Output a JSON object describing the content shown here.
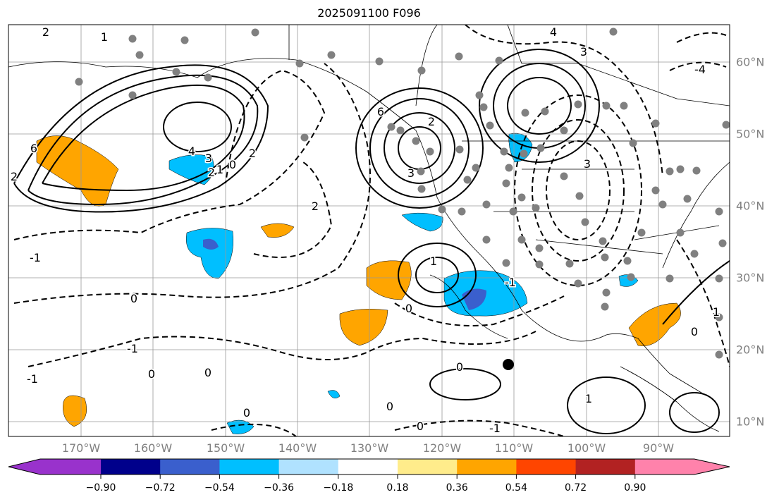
{
  "title": "2025091100 F096",
  "lon_labels": [
    "170°W",
    "160°W",
    "150°W",
    "140°W",
    "130°W",
    "120°W",
    "110°W",
    "100°W",
    "90°W"
  ],
  "lat_labels": [
    "60°N",
    "50°N",
    "40°N",
    "30°N",
    "20°N",
    "10°N"
  ],
  "colorbar": {
    "ticks": [
      "−0.90",
      "−0.72",
      "−0.54",
      "−0.36",
      "−0.18",
      "0.18",
      "0.36",
      "0.54",
      "0.72",
      "0.90"
    ],
    "colors": [
      "#9932cc",
      "#00008b",
      "#3a5fcd",
      "#00bfff",
      "#b0e2ff",
      "#ffffff",
      "#ffec8b",
      "#ffa500",
      "#ff4500",
      "#b22222",
      "#ff82ab"
    ]
  },
  "contour_labels": [
    "2",
    "1",
    "6",
    "4",
    "3",
    "2",
    "1",
    "0",
    "2",
    "-1",
    "2",
    "0",
    "0",
    "-1",
    "-1",
    "0",
    "0",
    "0",
    "1",
    "-1",
    "0",
    "0",
    "1",
    "2",
    "3",
    "6",
    "3",
    "4",
    "3",
    "-4",
    "2",
    "0",
    "1",
    "0",
    "-1"
  ]
}
